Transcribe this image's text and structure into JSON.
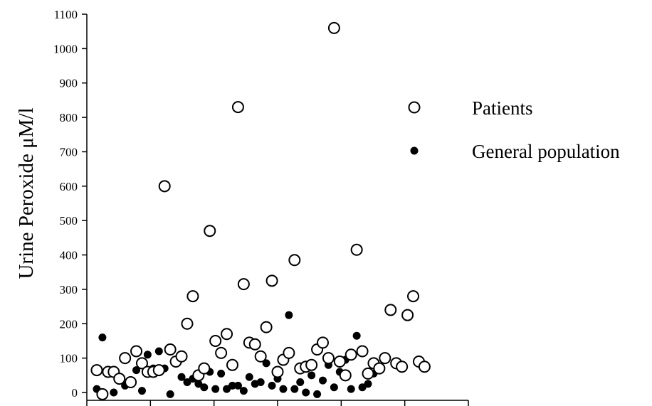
{
  "chart_data": {
    "type": "scatter",
    "ylabel": "Urine Peroxide μM/l",
    "xlabel": "",
    "title": "",
    "ylim": [
      0,
      1100
    ],
    "y_ticks": [
      "0",
      "100",
      "200",
      "300",
      "400",
      "500",
      "600",
      "700",
      "800",
      "900",
      "1000",
      "1100"
    ],
    "x_ticks_count": 7,
    "xlim": [
      0,
      130
    ],
    "grid": false,
    "legend_position": "right",
    "series": [
      {
        "name": "Patients",
        "marker": "open-circle",
        "color": "#000000",
        "points": [
          [
            1,
            65
          ],
          [
            3,
            -5
          ],
          [
            5,
            60
          ],
          [
            7,
            60
          ],
          [
            9,
            40
          ],
          [
            11,
            100
          ],
          [
            13,
            30
          ],
          [
            15,
            120
          ],
          [
            17,
            85
          ],
          [
            19,
            60
          ],
          [
            21,
            60
          ],
          [
            23,
            65
          ],
          [
            25,
            600
          ],
          [
            27,
            125
          ],
          [
            29,
            90
          ],
          [
            31,
            105
          ],
          [
            33,
            200
          ],
          [
            35,
            280
          ],
          [
            37,
            50
          ],
          [
            39,
            70
          ],
          [
            41,
            470
          ],
          [
            43,
            150
          ],
          [
            45,
            115
          ],
          [
            47,
            170
          ],
          [
            49,
            80
          ],
          [
            51,
            830
          ],
          [
            53,
            315
          ],
          [
            55,
            145
          ],
          [
            57,
            140
          ],
          [
            59,
            105
          ],
          [
            61,
            190
          ],
          [
            63,
            325
          ],
          [
            65,
            60
          ],
          [
            67,
            95
          ],
          [
            69,
            115
          ],
          [
            71,
            385
          ],
          [
            73,
            70
          ],
          [
            75,
            75
          ],
          [
            77,
            80
          ],
          [
            79,
            125
          ],
          [
            81,
            145
          ],
          [
            83,
            100
          ],
          [
            85,
            1060
          ],
          [
            87,
            90
          ],
          [
            89,
            50
          ],
          [
            91,
            110
          ],
          [
            93,
            415
          ],
          [
            95,
            120
          ],
          [
            97,
            55
          ],
          [
            99,
            85
          ],
          [
            101,
            70
          ],
          [
            103,
            100
          ],
          [
            105,
            240
          ],
          [
            107,
            85
          ],
          [
            109,
            75
          ],
          [
            111,
            225
          ],
          [
            113,
            280
          ],
          [
            115,
            90
          ],
          [
            117,
            75
          ]
        ]
      },
      {
        "name": "General population",
        "marker": "filled-circle",
        "color": "#000000",
        "points": [
          [
            1,
            10
          ],
          [
            3,
            160
          ],
          [
            5,
            60
          ],
          [
            7,
            0
          ],
          [
            9,
            35
          ],
          [
            11,
            20
          ],
          [
            13,
            25
          ],
          [
            15,
            65
          ],
          [
            17,
            5
          ],
          [
            19,
            110
          ],
          [
            21,
            70
          ],
          [
            23,
            120
          ],
          [
            25,
            70
          ],
          [
            27,
            -5
          ],
          [
            29,
            90
          ],
          [
            31,
            45
          ],
          [
            33,
            30
          ],
          [
            35,
            40
          ],
          [
            37,
            25
          ],
          [
            39,
            15
          ],
          [
            41,
            60
          ],
          [
            43,
            10
          ],
          [
            45,
            55
          ],
          [
            47,
            10
          ],
          [
            49,
            20
          ],
          [
            51,
            20
          ],
          [
            53,
            5
          ],
          [
            55,
            45
          ],
          [
            57,
            25
          ],
          [
            59,
            30
          ],
          [
            61,
            85
          ],
          [
            63,
            20
          ],
          [
            65,
            40
          ],
          [
            67,
            10
          ],
          [
            69,
            225
          ],
          [
            71,
            10
          ],
          [
            73,
            30
          ],
          [
            75,
            0
          ],
          [
            77,
            50
          ],
          [
            79,
            -5
          ],
          [
            81,
            35
          ],
          [
            83,
            80
          ],
          [
            85,
            15
          ],
          [
            87,
            60
          ],
          [
            89,
            95
          ],
          [
            91,
            10
          ],
          [
            93,
            165
          ],
          [
            95,
            15
          ],
          [
            97,
            25
          ],
          [
            99,
            55
          ]
        ]
      }
    ]
  }
}
